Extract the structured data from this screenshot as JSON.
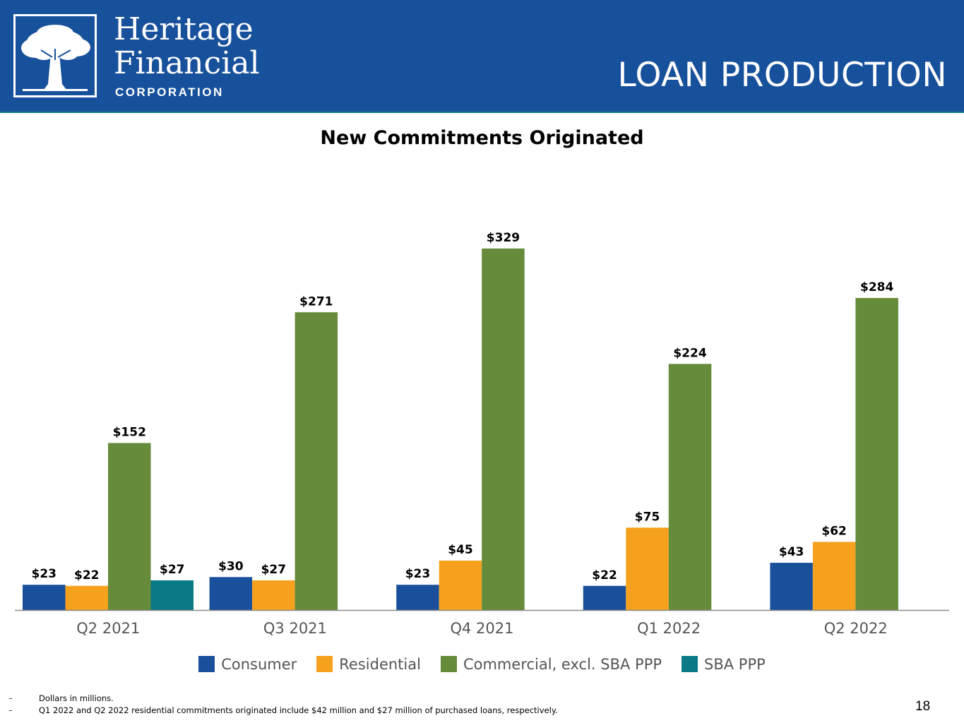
{
  "header": {
    "brand_line1": "Heritage",
    "brand_line2": "Financial",
    "brand_sub": "CORPORATION",
    "slide_title": "LOAN PRODUCTION",
    "logo_icon": "oak-tree-logo-icon",
    "bg_color": "#17509b"
  },
  "chart_data": {
    "type": "bar",
    "title": "New Commitments Originated",
    "xlabel": "",
    "ylabel": "",
    "categories": [
      "Q2 2021",
      "Q3 2021",
      "Q4 2021",
      "Q1 2022",
      "Q2 2022"
    ],
    "series": [
      {
        "name": "Consumer",
        "color": "#1a4f9c",
        "values": [
          23,
          30,
          23,
          22,
          43
        ],
        "labels": [
          "$23",
          "$30",
          "$23",
          "$22",
          "$43"
        ]
      },
      {
        "name": "Residential",
        "color": "#f6a11e",
        "values": [
          22,
          27,
          45,
          75,
          62
        ],
        "labels": [
          "$22",
          "$27",
          "$45",
          "$75",
          "$62"
        ]
      },
      {
        "name": "Commercial, excl. SBA PPP",
        "color": "#658b3b",
        "values": [
          152,
          271,
          329,
          224,
          284
        ],
        "labels": [
          "$152",
          "$271",
          "$329",
          "$224",
          "$284"
        ]
      },
      {
        "name": "SBA PPP",
        "color": "#0b7a87",
        "values": [
          27,
          null,
          null,
          null,
          null
        ],
        "labels": [
          "$27",
          "",
          "",
          "",
          ""
        ]
      }
    ],
    "ylim": [
      0,
      340
    ],
    "grid": false,
    "legend_position": "bottom"
  },
  "footnotes": [
    "Dollars in millions.",
    "Q1 2022 and Q2 2022 residential commitments originated include $42 million and $27 million of purchased loans, respectively."
  ],
  "footnote_marker": "–",
  "page_number": "18"
}
